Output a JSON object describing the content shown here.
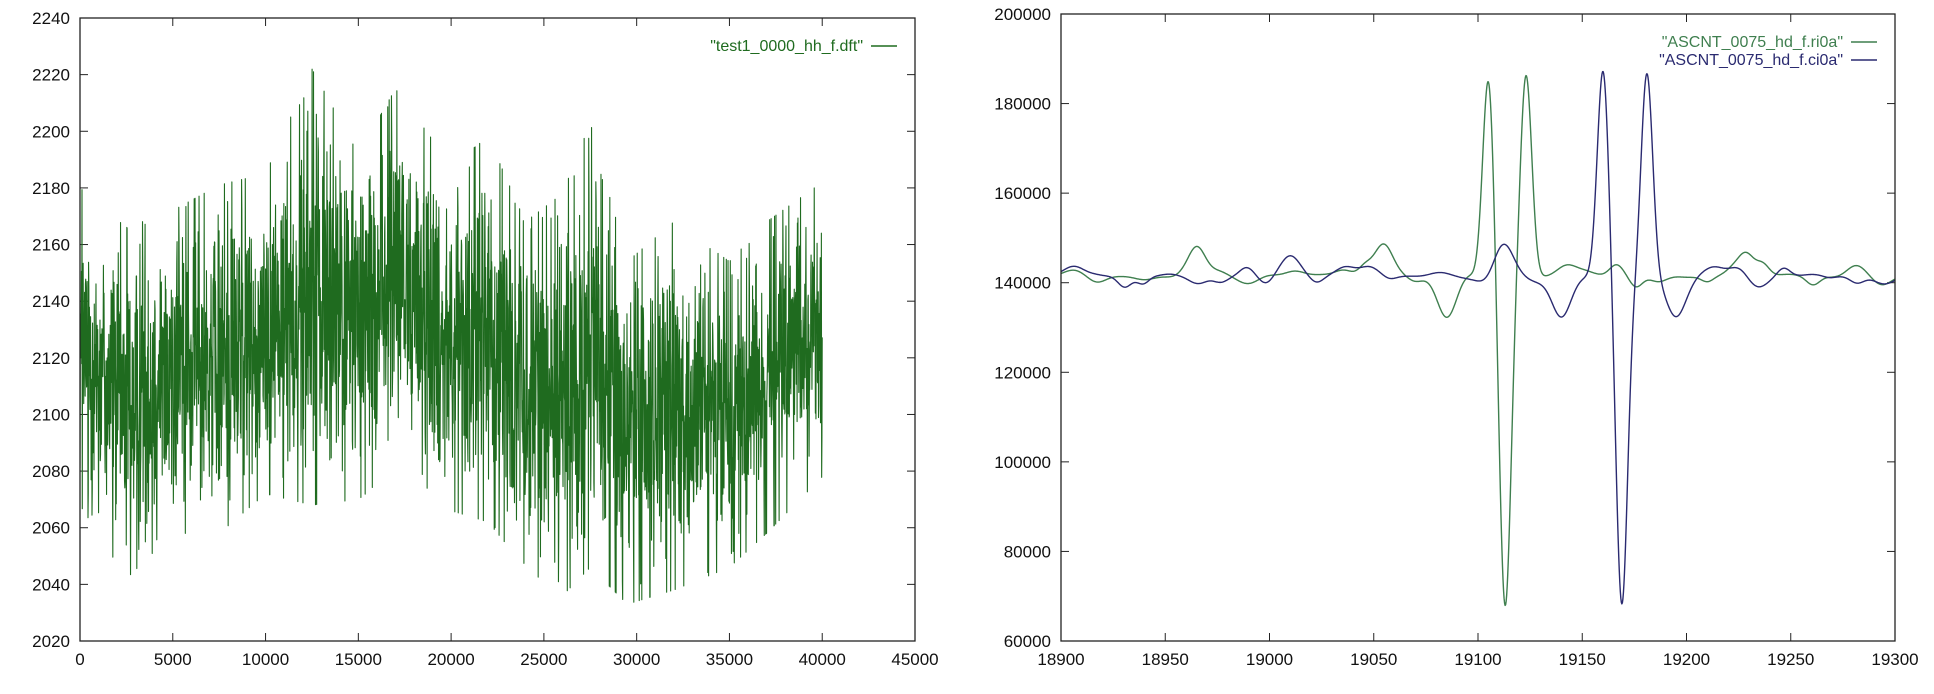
{
  "chart_data": [
    {
      "type": "line",
      "title": "",
      "xlabel": "",
      "ylabel": "",
      "xlim": [
        0,
        45000
      ],
      "ylim": [
        2020,
        2240
      ],
      "x_ticks": [
        "0",
        "5000",
        "10000",
        "15000",
        "20000",
        "25000",
        "30000",
        "35000",
        "40000",
        "45000"
      ],
      "y_ticks": [
        "2020",
        "2040",
        "2060",
        "2080",
        "2100",
        "2120",
        "2140",
        "2160",
        "2180",
        "2200",
        "2220",
        "2240"
      ],
      "grid": false,
      "legend_position": "top-right",
      "series": [
        {
          "name": "\"test1_0000_hh_f.dft\"",
          "color": "#1f6b1f",
          "style": "dense noisy signal",
          "x_range": [
            0,
            40000
          ],
          "envelope": [
            {
              "x": 0,
              "low": 2068,
              "high": 2180
            },
            {
              "x": 2500,
              "low": 2042,
              "high": 2166
            },
            {
              "x": 5000,
              "low": 2058,
              "high": 2172
            },
            {
              "x": 7500,
              "low": 2058,
              "high": 2181
            },
            {
              "x": 10000,
              "low": 2072,
              "high": 2185
            },
            {
              "x": 12500,
              "low": 2068,
              "high": 2222
            },
            {
              "x": 15000,
              "low": 2070,
              "high": 2192
            },
            {
              "x": 17000,
              "low": 2080,
              "high": 2215
            },
            {
              "x": 20000,
              "low": 2066,
              "high": 2188
            },
            {
              "x": 22000,
              "low": 2062,
              "high": 2198
            },
            {
              "x": 24000,
              "low": 2046,
              "high": 2168
            },
            {
              "x": 26000,
              "low": 2036,
              "high": 2178
            },
            {
              "x": 27500,
              "low": 2046,
              "high": 2203
            },
            {
              "x": 29500,
              "low": 2033,
              "high": 2154
            },
            {
              "x": 32000,
              "low": 2038,
              "high": 2168
            },
            {
              "x": 35000,
              "low": 2046,
              "high": 2154
            },
            {
              "x": 37000,
              "low": 2058,
              "high": 2168
            },
            {
              "x": 40000,
              "low": 2078,
              "high": 2182
            }
          ]
        }
      ]
    },
    {
      "type": "line",
      "title": "",
      "xlabel": "",
      "ylabel": "",
      "xlim": [
        18900,
        19300
      ],
      "ylim": [
        60000,
        200000
      ],
      "x_ticks": [
        "18900",
        "18950",
        "19000",
        "19050",
        "19100",
        "19150",
        "19200",
        "19250",
        "19300"
      ],
      "y_ticks": [
        "60000",
        "80000",
        "100000",
        "120000",
        "140000",
        "160000",
        "180000",
        "200000"
      ],
      "grid": false,
      "legend_position": "top-right",
      "series": [
        {
          "name": "\"ASCNT_0075_hd_f.ri0a\"",
          "color": "#3f7f4f",
          "baseline": 141500,
          "features": [
            {
              "x": 18965,
              "y": 147000
            },
            {
              "x": 19055,
              "y": 149000
            },
            {
              "x": 19085,
              "y": 132000
            },
            {
              "x": 19105,
              "y": 188000
            },
            {
              "x": 19113,
              "y": 68000
            },
            {
              "x": 19123,
              "y": 188000
            },
            {
              "x": 19227,
              "y": 148000
            }
          ]
        },
        {
          "name": "\"ASCNT_0075_hd_f.ci0a\"",
          "color": "#2a2a70",
          "baseline": 141500,
          "features": [
            {
              "x": 19010,
              "y": 146000
            },
            {
              "x": 19112,
              "y": 148500
            },
            {
              "x": 19140,
              "y": 133000
            },
            {
              "x": 19160,
              "y": 188500
            },
            {
              "x": 19169,
              "y": 69000
            },
            {
              "x": 19181,
              "y": 187000
            },
            {
              "x": 19195,
              "y": 132500
            }
          ]
        }
      ]
    }
  ]
}
